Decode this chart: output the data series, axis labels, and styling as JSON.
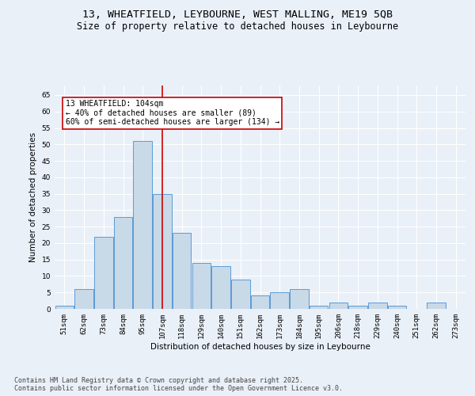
{
  "title_line1": "13, WHEATFIELD, LEYBOURNE, WEST MALLING, ME19 5QB",
  "title_line2": "Size of property relative to detached houses in Leybourne",
  "xlabel": "Distribution of detached houses by size in Leybourne",
  "ylabel": "Number of detached properties",
  "categories": [
    "51sqm",
    "62sqm",
    "73sqm",
    "84sqm",
    "95sqm",
    "107sqm",
    "118sqm",
    "129sqm",
    "140sqm",
    "151sqm",
    "162sqm",
    "173sqm",
    "184sqm",
    "195sqm",
    "206sqm",
    "218sqm",
    "229sqm",
    "240sqm",
    "251sqm",
    "262sqm",
    "273sqm"
  ],
  "values": [
    1,
    6,
    22,
    28,
    51,
    35,
    23,
    14,
    13,
    9,
    4,
    5,
    6,
    1,
    2,
    1,
    2,
    1,
    0,
    2,
    0
  ],
  "bar_color": "#c8d9e8",
  "bar_edge_color": "#5b9bd5",
  "vline_x": 5.0,
  "vline_color": "#cc0000",
  "annotation_text": "13 WHEATFIELD: 104sqm\n← 40% of detached houses are smaller (89)\n60% of semi-detached houses are larger (134) →",
  "annotation_box_color": "#ffffff",
  "annotation_box_edge": "#cc0000",
  "ylim": [
    0,
    68
  ],
  "yticks": [
    0,
    5,
    10,
    15,
    20,
    25,
    30,
    35,
    40,
    45,
    50,
    55,
    60,
    65
  ],
  "bg_color": "#eaf0f8",
  "plot_bg_color": "#eaf0f8",
  "grid_color": "#ffffff",
  "footer_text": "Contains HM Land Registry data © Crown copyright and database right 2025.\nContains public sector information licensed under the Open Government Licence v3.0.",
  "title_fontsize": 9.5,
  "title2_fontsize": 8.5,
  "axis_label_fontsize": 7.5,
  "tick_fontsize": 6.5,
  "annotation_fontsize": 7,
  "footer_fontsize": 6
}
